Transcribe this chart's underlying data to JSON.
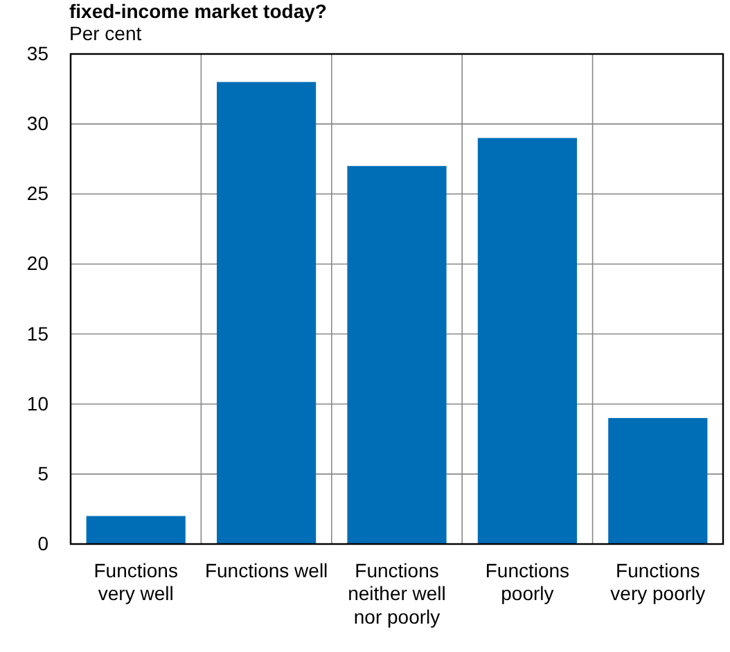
{
  "chart_data": {
    "type": "bar",
    "title": "fixed-income market today?",
    "ylabel": "Per cent",
    "categories": [
      "Functions very well",
      "Functions well",
      "Functions neither well nor poorly",
      "Functions poorly",
      "Functions very poorly"
    ],
    "values": [
      2,
      33,
      27,
      29,
      9
    ],
    "color": "#006eb6",
    "ylim": [
      0,
      35
    ],
    "yticks": [
      0,
      5,
      10,
      15,
      20,
      25,
      30,
      35
    ],
    "grid": true
  }
}
